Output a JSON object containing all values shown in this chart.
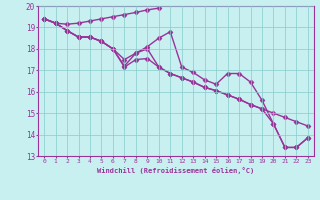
{
  "xlabel": "Windchill (Refroidissement éolien,°C)",
  "bg_color": "#c8f0f0",
  "line_color": "#993399",
  "marker": "D",
  "markersize": 2.5,
  "linewidth": 1.0,
  "xlim": [
    -0.5,
    23.5
  ],
  "ylim": [
    13,
    20
  ],
  "xticks": [
    0,
    1,
    2,
    3,
    4,
    5,
    6,
    7,
    8,
    9,
    10,
    11,
    12,
    13,
    14,
    15,
    16,
    17,
    18,
    19,
    20,
    21,
    22,
    23
  ],
  "yticks": [
    13,
    14,
    15,
    16,
    17,
    18,
    19,
    20
  ],
  "lines": [
    [
      19.4,
      19.2,
      19.15,
      19.2,
      19.3,
      19.4,
      19.5,
      19.6,
      19.7,
      19.82,
      19.9,
      null,
      null,
      null,
      null,
      null,
      null,
      null,
      null,
      null,
      null,
      null,
      null,
      null
    ],
    [
      19.4,
      19.2,
      18.85,
      18.55,
      18.55,
      18.35,
      18.0,
      17.2,
      17.8,
      18.1,
      18.5,
      18.8,
      17.15,
      16.9,
      16.55,
      16.35,
      16.85,
      16.85,
      16.45,
      15.6,
      14.5,
      13.4,
      13.4,
      13.85
    ],
    [
      19.4,
      19.2,
      18.85,
      18.55,
      18.55,
      18.35,
      18.0,
      17.15,
      17.5,
      17.55,
      17.15,
      16.85,
      16.65,
      16.45,
      16.2,
      16.05,
      15.85,
      15.65,
      15.4,
      15.2,
      15.0,
      14.8,
      14.6,
      14.4
    ],
    [
      19.4,
      19.2,
      18.85,
      18.55,
      18.55,
      18.35,
      18.0,
      17.5,
      17.8,
      18.0,
      17.15,
      16.85,
      16.65,
      16.45,
      16.2,
      16.05,
      15.85,
      15.65,
      15.4,
      15.2,
      14.5,
      13.4,
      13.4,
      13.85
    ]
  ]
}
